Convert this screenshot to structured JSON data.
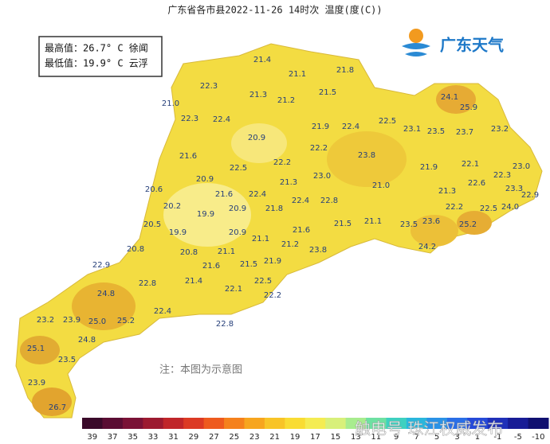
{
  "title": "广东省各市县2022-11-26 14时次 温度(度(C))",
  "extremes": [
    "最高值：26.7° C 徐闻",
    "最低值：19.9° C 云浮"
  ],
  "logo": "广东天气",
  "note": "注：本图为示意图",
  "watermark": "触电号 珠江权威发布",
  "temperatures": [
    "21.4",
    "21.1",
    "21.8",
    "22.3",
    "21.3",
    "21.2",
    "21.5",
    "21.0",
    "24.1",
    "25.9",
    "22.3",
    "22.4",
    "21.9",
    "22.4",
    "22.5",
    "23.1",
    "23.5",
    "23.7",
    "23.2",
    "20.9",
    "22.2",
    "21.6",
    "22.5",
    "22.2",
    "23.0",
    "23.8",
    "21.9",
    "22.1",
    "23.0",
    "22.3",
    "20.9",
    "21.3",
    "21.0",
    "22.6",
    "23.3",
    "22.9",
    "20.6",
    "21.6",
    "22.4",
    "21.3",
    "24.0",
    "20.2",
    "20.9",
    "21.8",
    "22.4",
    "22.8",
    "22.2",
    "22.5",
    "19.9",
    "21.1",
    "21.5",
    "21.6",
    "23.5",
    "23.6",
    "25.2",
    "20.5",
    "19.9",
    "20.9",
    "21.1",
    "20.8",
    "20.8",
    "21.1",
    "21.2",
    "23.8",
    "24.2",
    "21.6",
    "21.5",
    "21.9",
    "22.9",
    "22.8",
    "21.4",
    "22.5",
    "22.1",
    "22.2",
    "24.8",
    "22.4",
    "23.2",
    "23.9",
    "25.0",
    "25.2",
    "22.8",
    "24.8",
    "25.1",
    "23.5",
    "23.9",
    "26.7"
  ],
  "legend": [
    "39",
    "37",
    "35",
    "33",
    "31",
    "29",
    "27",
    "25",
    "23",
    "21",
    "19",
    "17",
    "15",
    "13",
    "11",
    "9",
    "7",
    "5",
    "3",
    "1",
    "-1",
    "-5",
    "-10"
  ]
}
